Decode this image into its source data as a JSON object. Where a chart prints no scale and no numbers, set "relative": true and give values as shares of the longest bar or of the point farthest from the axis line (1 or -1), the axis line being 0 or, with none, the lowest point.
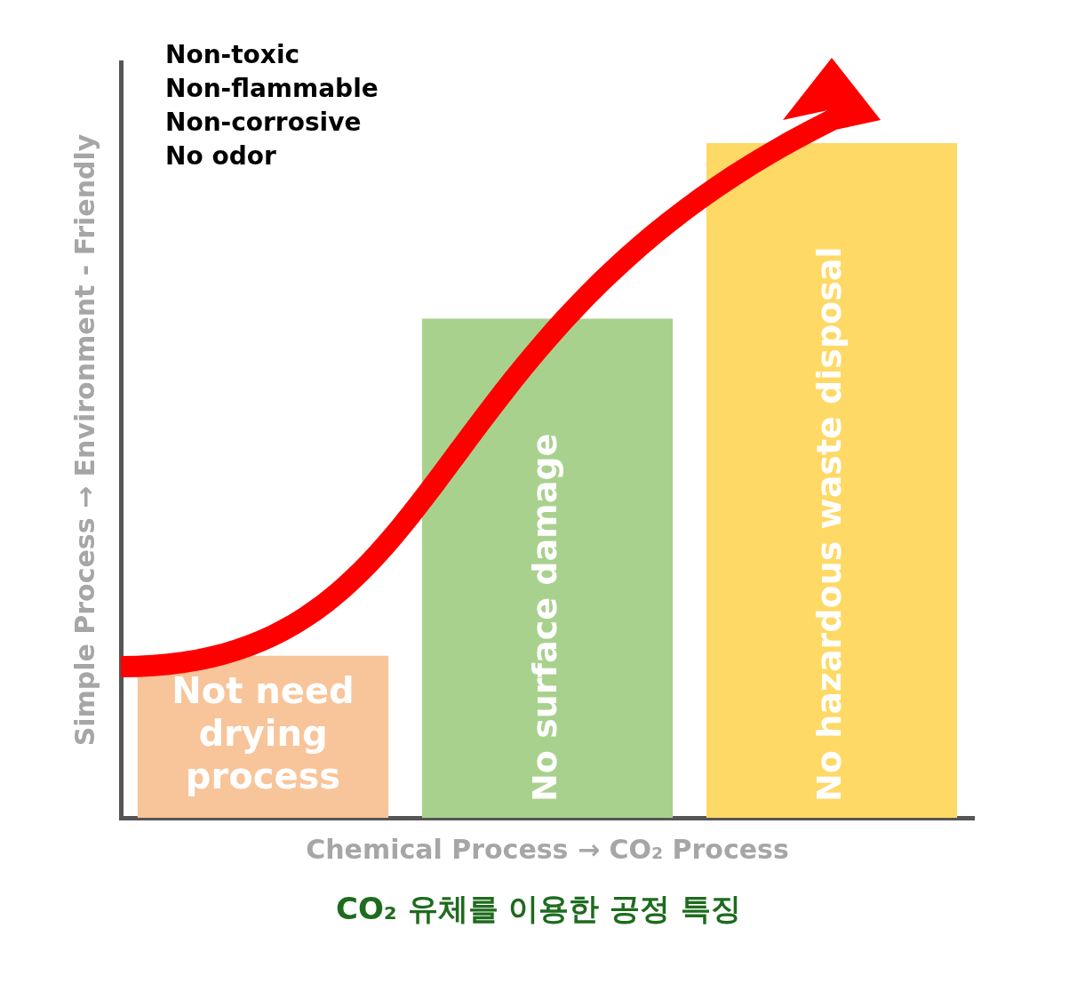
{
  "chart_data": {
    "type": "bar",
    "relative": true,
    "grid": false,
    "legend": false,
    "title": "CO₂ 유체를 이용한 공정 특징",
    "xlabel": "Chemical Process → CO₂ Process",
    "ylabel": "Simple Process → Environment - Friendly",
    "annotations": [
      "Non-toxic",
      "Non-flammable",
      "Non-corrosive",
      "No odor"
    ],
    "categories": [
      "Not need drying process",
      "No surface damage",
      "No hazardous waste disposal"
    ],
    "values": [
      0.24,
      0.74,
      1
    ],
    "colors": [
      "#f8c49a",
      "#a9d18e",
      "#ffd966"
    ]
  }
}
